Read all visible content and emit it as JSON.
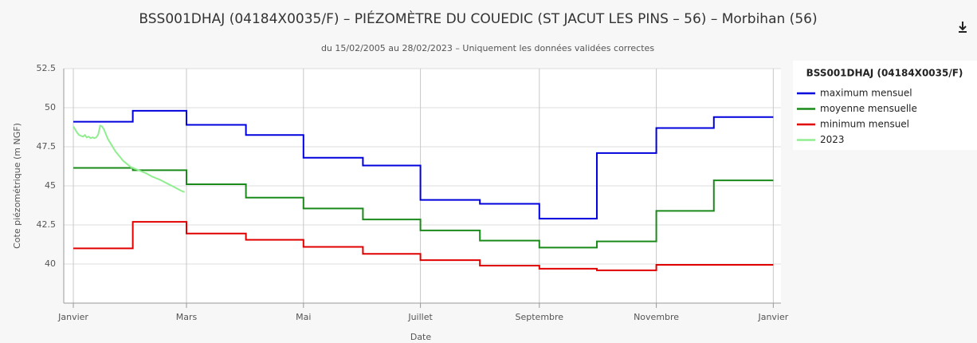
{
  "chart_data": {
    "type": "step-line",
    "title": "BSS001DHAJ (04184X0035/F) – PIÉZOMÈTRE DU COUEDIC (ST JACUT LES PINS – 56) – Morbihan (56)",
    "subtitle": "du 15/02/2005 au 28/02/2023 – Uniquement les données validées correctes",
    "x_label": "Date",
    "y_label": "Cote piézométrique (m NGF)",
    "legend_title": "BSS001DHAJ (04184X0035/F)",
    "legend_position": "right",
    "grid": true,
    "xlim": [
      -5,
      369
    ],
    "xticks": [
      {
        "value": 0,
        "label": "Janvier"
      },
      {
        "value": 59,
        "label": "Mars"
      },
      {
        "value": 120,
        "label": "Mai"
      },
      {
        "value": 181,
        "label": "Juillet"
      },
      {
        "value": 243,
        "label": "Septembre"
      },
      {
        "value": 304,
        "label": "Novembre"
      },
      {
        "value": 365,
        "label": "Janvier"
      }
    ],
    "ylim": [
      37.5,
      52.5
    ],
    "yticks": [
      40,
      42.5,
      45,
      47.5,
      50,
      52.5
    ],
    "series": [
      {
        "name": "maximum mensuel",
        "color": "#0000dd",
        "step": true,
        "x": [
          0,
          31,
          59,
          90,
          120,
          151,
          181,
          212,
          243,
          273,
          304,
          334
        ],
        "values": [
          49.1,
          49.8,
          48.9,
          48.25,
          46.8,
          46.3,
          44.1,
          43.85,
          42.9,
          47.1,
          48.7,
          49.4
        ]
      },
      {
        "name": "moyenne mensuelle",
        "color": "#1a8a1a",
        "step": true,
        "x": [
          0,
          31,
          59,
          90,
          120,
          151,
          181,
          212,
          243,
          273,
          304,
          334
        ],
        "values": [
          46.15,
          46.0,
          45.1,
          44.25,
          43.55,
          42.85,
          42.15,
          41.5,
          41.05,
          41.45,
          43.4,
          45.35
        ]
      },
      {
        "name": "minimum mensuel",
        "color": "#e00000",
        "step": true,
        "x": [
          0,
          31,
          59,
          90,
          120,
          151,
          181,
          212,
          243,
          273,
          304,
          334
        ],
        "values": [
          41.0,
          42.7,
          41.95,
          41.55,
          41.1,
          40.65,
          40.25,
          39.9,
          39.7,
          39.6,
          39.95,
          39.95
        ]
      },
      {
        "name": "2023",
        "color": "#90ee90",
        "step": false,
        "x": [
          0,
          1,
          2,
          3,
          4,
          5,
          6,
          7,
          8,
          9,
          10,
          11,
          12,
          13,
          14,
          15,
          16,
          17,
          18,
          20,
          22,
          24,
          26,
          28,
          30,
          32,
          35,
          38,
          41,
          45,
          49,
          53,
          56,
          58
        ],
        "values": [
          48.8,
          48.6,
          48.4,
          48.25,
          48.2,
          48.15,
          48.25,
          48.1,
          48.15,
          48.05,
          48.1,
          48.05,
          48.1,
          48.3,
          48.85,
          48.8,
          48.6,
          48.3,
          48.0,
          47.6,
          47.2,
          46.9,
          46.6,
          46.4,
          46.2,
          46.1,
          45.95,
          45.8,
          45.6,
          45.4,
          45.15,
          44.9,
          44.7,
          44.6
        ]
      }
    ]
  }
}
